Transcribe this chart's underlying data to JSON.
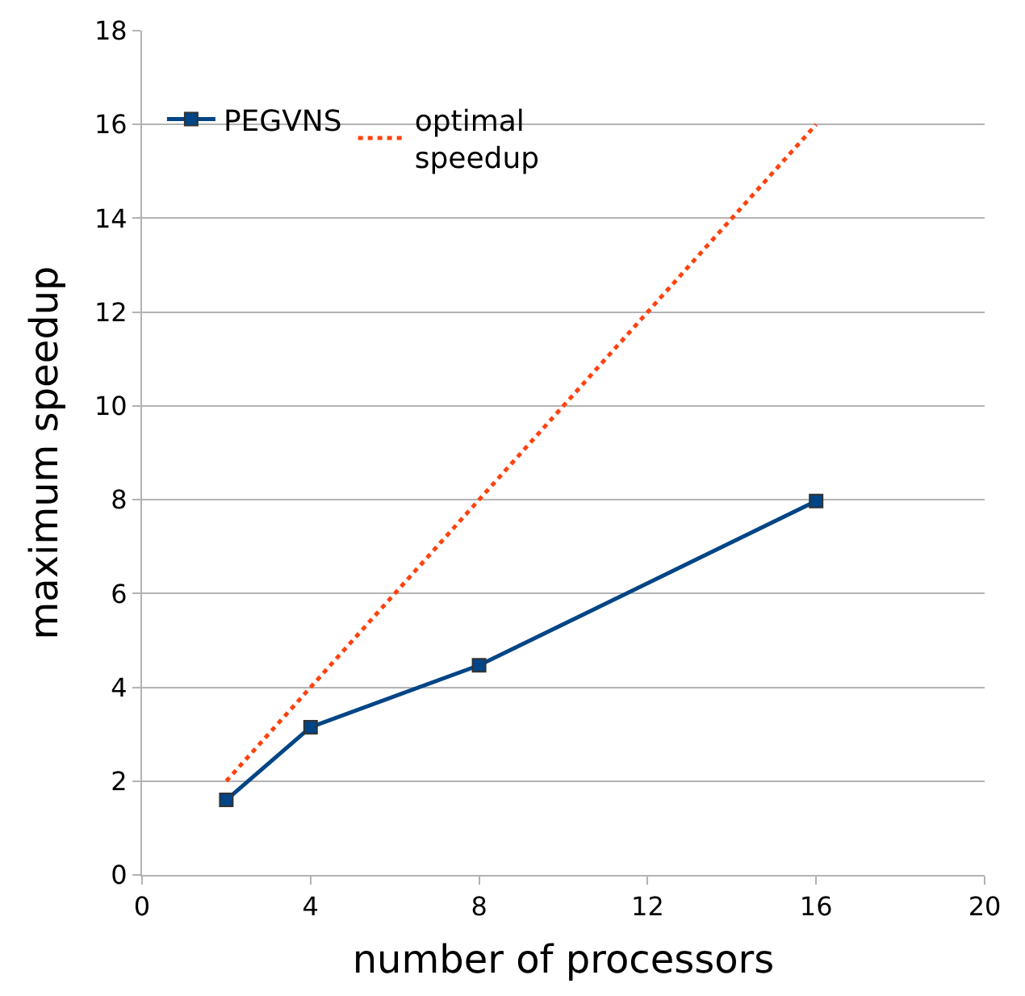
{
  "chart_data": {
    "type": "line",
    "xlabel": "number of processors",
    "ylabel": "maximum speedup",
    "xlim": [
      0,
      20
    ],
    "xticks": [
      0,
      4,
      8,
      12,
      16,
      20
    ],
    "ylim": [
      0,
      18
    ],
    "yticks": [
      0,
      2,
      4,
      6,
      8,
      10,
      12,
      14,
      16,
      18
    ],
    "grid": "y",
    "legend": "top left",
    "series": [
      {
        "name": "PEGVNS",
        "color": "#004586",
        "x": [
          2,
          4,
          8,
          16
        ],
        "values": [
          1.6,
          3.15,
          4.47,
          7.97
        ],
        "marker": "square",
        "line_style": "solid"
      },
      {
        "name": "optimal speedup",
        "color": "#ff420e",
        "x": [
          2,
          16
        ],
        "values": [
          2,
          16
        ],
        "marker": "none",
        "line_style": "dotted"
      }
    ]
  }
}
